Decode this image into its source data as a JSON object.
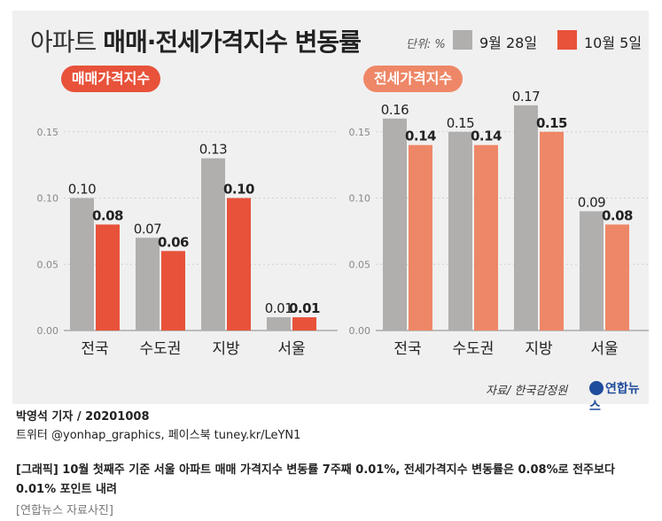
{
  "title_thin": "아파트",
  "title_bold": "매매·전세가격지수 변동률",
  "unit": "단위: %",
  "legend": [
    {
      "name": "9월 28일",
      "color": "#b1aeae"
    },
    {
      "name": "10월 5일",
      "color": "#e8523a"
    }
  ],
  "chart_data": [
    {
      "type": "bar",
      "title": "매매가격지수",
      "categories": [
        "전국",
        "수도권",
        "지방",
        "서울"
      ],
      "series": [
        {
          "name": "9월 28일",
          "values": [
            0.1,
            0.07,
            0.13,
            0.01
          ],
          "labels": [
            "0.10",
            "0.07",
            "0.13",
            "0.01"
          ],
          "color": "#b1aeae"
        },
        {
          "name": "10월 5일",
          "values": [
            0.08,
            0.06,
            0.1,
            0.01
          ],
          "labels": [
            "0.08",
            "0.06",
            "0.10",
            "0.01"
          ],
          "color": "#e8523a"
        }
      ],
      "yticks": [
        "0.00",
        "0.05",
        "0.10",
        "0.15"
      ],
      "ylim": [
        0,
        0.2
      ],
      "pill_color": "#e8523a"
    },
    {
      "type": "bar",
      "title": "전세가격지수",
      "categories": [
        "전국",
        "수도권",
        "지방",
        "서울"
      ],
      "series": [
        {
          "name": "9월 28일",
          "values": [
            0.16,
            0.15,
            0.17,
            0.09
          ],
          "labels": [
            "0.16",
            "0.15",
            "0.17",
            "0.09"
          ],
          "color": "#b1aeae"
        },
        {
          "name": "10월 5일",
          "values": [
            0.14,
            0.14,
            0.15,
            0.08
          ],
          "labels": [
            "0.14",
            "0.14",
            "0.15",
            "0.08"
          ],
          "color": "#ee8767"
        }
      ],
      "yticks": [
        "0.00",
        "0.05",
        "0.10",
        "0.15"
      ],
      "ylim": [
        0,
        0.2
      ],
      "pill_color": "#ee8767"
    }
  ],
  "source": "자료/ 한국감정원",
  "logo": "연합뉴스",
  "credit_line1": "박영석 기자 /  20201008",
  "credit_line2": "트위터 @yonhap_graphics, 페이스북 tuney.kr/LeYN1",
  "caption": "[그래픽] 10월 첫째주 기준 서울 아파트 매매 가격지수 변동률 7주째 0.01%, 전세가격지수 변동률은 0.08%로 전주보다 0.01% 포인트 내려",
  "photo_source": "[연합뉴스 자료사진]"
}
